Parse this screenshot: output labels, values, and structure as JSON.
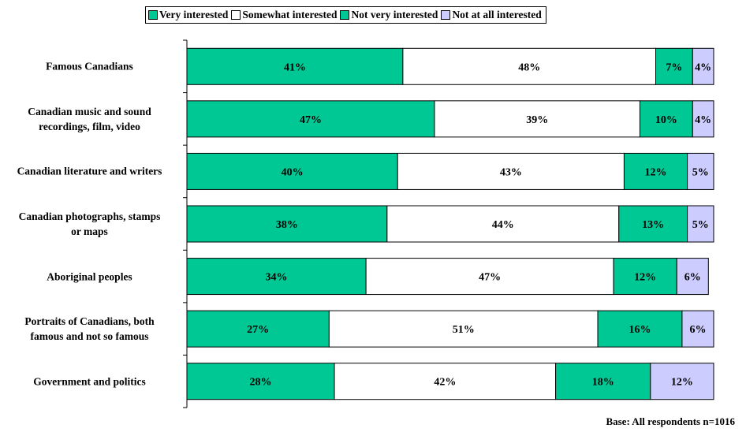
{
  "colors": {
    "very_interested": "#00c894",
    "somewhat_interested": "#ffffff",
    "not_very_interested": "#00c894",
    "not_at_all_interested": "#ccccff"
  },
  "legend": [
    {
      "label": "Very interested",
      "color": "#00c894"
    },
    {
      "label": "Somewhat interested",
      "color": "#ffffff"
    },
    {
      "label": "Not very interested",
      "color": "#00c894"
    },
    {
      "label": "Not at all interested",
      "color": "#ccccff"
    }
  ],
  "footnote": "Base: All respondents n=1016",
  "chart_data": {
    "type": "bar",
    "orientation": "horizontal",
    "stacked": true,
    "categories": [
      "Famous Canadians",
      "Canadian music and sound recordings, film, video",
      "Canadian literature and writers",
      "Canadian photographs, stamps or maps",
      "Aboriginal peoples",
      "Portraits of Canadians, both famous and not so famous",
      "Government and politics"
    ],
    "category_lines": [
      [
        "Famous Canadians"
      ],
      [
        "Canadian music and sound",
        "recordings, film, video"
      ],
      [
        "Canadian literature and writers"
      ],
      [
        "Canadian photographs, stamps",
        "or maps"
      ],
      [
        "Aboriginal peoples"
      ],
      [
        "Portraits of Canadians, both",
        "famous and not so famous"
      ],
      [
        "Government and politics"
      ]
    ],
    "series": [
      {
        "name": "Very interested",
        "values": [
          41,
          47,
          40,
          38,
          34,
          27,
          28
        ]
      },
      {
        "name": "Somewhat interested",
        "values": [
          48,
          39,
          43,
          44,
          47,
          51,
          42
        ]
      },
      {
        "name": "Not very interested",
        "values": [
          7,
          10,
          12,
          13,
          12,
          16,
          18
        ]
      },
      {
        "name": "Not at all interested",
        "values": [
          4,
          4,
          5,
          5,
          6,
          6,
          12
        ]
      }
    ],
    "value_labels": [
      [
        "41%",
        "48%",
        "7%",
        "4%"
      ],
      [
        "47%",
        "39%",
        "10%",
        "4%"
      ],
      [
        "40%",
        "43%",
        "12%",
        "5%"
      ],
      [
        "38%",
        "44%",
        "13%",
        "5%"
      ],
      [
        "34%",
        "47%",
        "12%",
        "6%"
      ],
      [
        "27%",
        "51%",
        "16%",
        "6%"
      ],
      [
        "28%",
        "42%",
        "18%",
        "12%"
      ]
    ],
    "xlim": [
      0,
      100
    ],
    "legend_position": "top",
    "grid": false
  }
}
